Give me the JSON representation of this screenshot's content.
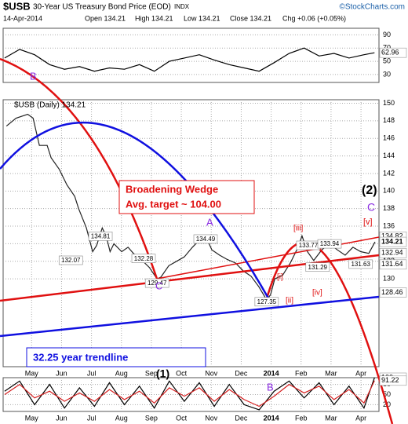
{
  "header": {
    "symbol": "$USB",
    "name": "30-Year US Treasury Bond Price (EOD)",
    "exchange": "INDX",
    "brand": "©StockCharts.com",
    "date": "14-Apr-2014",
    "open": "Open 134.21",
    "high": "High 134.21",
    "low": "Low 134.21",
    "close": "Close 134.21",
    "change": "Chg +0.06 (+0.05%)"
  },
  "chart_data": [
    {
      "type": "line",
      "xlim": [
        -0.95,
        11.6
      ],
      "ylim": [
        18,
        100
      ],
      "yticks": [
        90,
        70,
        50,
        30
      ],
      "x": [
        -0.9,
        -0.4,
        0.1,
        0.6,
        1.1,
        1.6,
        2.1,
        2.6,
        3.1,
        3.6,
        4.1,
        4.6,
        5.1,
        5.6,
        6.1,
        6.6,
        7.1,
        7.6,
        8.1,
        8.6,
        9.1,
        9.6,
        10.1,
        10.6,
        11.1,
        11.45
      ],
      "series": [
        {
          "color": "#000000",
          "values": [
            55,
            68,
            60,
            45,
            38,
            42,
            35,
            40,
            38,
            45,
            35,
            50,
            55,
            60,
            52,
            45,
            40,
            35,
            48,
            62,
            70,
            58,
            62,
            55,
            60,
            62.96
          ]
        }
      ],
      "markers": [
        62.96
      ]
    },
    {
      "type": "line",
      "xlim": [
        -0.95,
        11.6
      ],
      "ylim": [
        120,
        150.4
      ],
      "yticks": [
        150,
        148,
        146,
        144,
        142,
        140,
        138,
        136,
        134,
        132,
        130
      ],
      "xticks": [
        {
          "value": 0,
          "label": "May"
        },
        {
          "value": 1,
          "label": "Jun"
        },
        {
          "value": 2,
          "label": "Jul"
        },
        {
          "value": 3,
          "label": "Aug"
        },
        {
          "value": 4,
          "label": "Sep"
        },
        {
          "value": 5,
          "label": "Oct"
        },
        {
          "value": 6,
          "label": "Nov"
        },
        {
          "value": 7,
          "label": "Dec"
        },
        {
          "value": 8,
          "label": "2014"
        },
        {
          "value": 9,
          "label": "Feb"
        },
        {
          "value": 10,
          "label": "Mar"
        },
        {
          "value": 11,
          "label": "Apr"
        }
      ],
      "x": [
        -0.84,
        -0.52,
        -0.13,
        0.05,
        0.26,
        0.52,
        0.65,
        0.92,
        1.18,
        1.44,
        1.57,
        1.83,
        2.04,
        2.17,
        2.36,
        2.49,
        2.62,
        2.75,
        3.01,
        3.22,
        3.4,
        3.66,
        3.93,
        4.19,
        4.32,
        4.58,
        4.84,
        5.1,
        5.37,
        5.63,
        5.81,
        6.02,
        6.28,
        6.54,
        6.81,
        7.07,
        7.33,
        7.59,
        7.85,
        7.98,
        8.12,
        8.38,
        8.64,
        8.9,
        9.03,
        9.21,
        9.42,
        9.69,
        9.95,
        10.21,
        10.47,
        10.73,
        10.99,
        11.26,
        11.47
      ],
      "series": [
        {
          "name": "$USB (Daily) 134.21",
          "color": "#222222",
          "values": [
            147.4,
            148.3,
            148.75,
            148.3,
            145.2,
            145.2,
            143.8,
            142.5,
            140.7,
            139.4,
            138,
            135.8,
            133.1,
            133.8,
            135.8,
            134.9,
            133.1,
            134,
            133.1,
            133.6,
            132.9,
            132.2,
            131.3,
            130,
            130.2,
            131.5,
            132,
            132.5,
            133.6,
            134.5,
            134.9,
            133.3,
            132.7,
            132.2,
            131.8,
            130.9,
            130.3,
            129.1,
            127.6,
            128.2,
            130,
            130.4,
            131.8,
            133.6,
            134.9,
            133.1,
            132.1,
            133.3,
            134,
            133.3,
            132.7,
            133.6,
            133.1,
            132.9,
            134.21
          ]
        }
      ],
      "point_labels": [
        {
          "x": 2.3,
          "value": 134.81
        },
        {
          "x": 1.31,
          "value": 132.07
        },
        {
          "x": 3.74,
          "value": 132.28
        },
        {
          "x": 4.19,
          "value": 129.47
        },
        {
          "x": 5.81,
          "value": 134.49
        },
        {
          "x": 7.85,
          "value": 127.35
        },
        {
          "x": 9.24,
          "value": 133.77
        },
        {
          "x": 9.55,
          "value": 131.29
        },
        {
          "x": 9.95,
          "value": 133.94
        },
        {
          "x": 10.99,
          "value": 131.63
        }
      ],
      "markers": [
        134.82,
        134.21,
        132.94,
        131.64,
        128.46
      ],
      "annotations": [
        "Broadening Wedge",
        "Avg. target ~ 104.00",
        "32.25 year trendline",
        "B",
        "C",
        "A",
        "(2)",
        "C",
        "[v]",
        "[iii]",
        "[i]",
        "[ii]",
        "[iv]",
        "(1)"
      ]
    },
    {
      "type": "line",
      "xlim": [
        -0.95,
        11.6
      ],
      "ylim": [
        0,
        100
      ],
      "yticks": [
        80,
        50,
        20
      ],
      "xticks": [
        {
          "value": 0,
          "label": "May"
        },
        {
          "value": 1,
          "label": "Jun"
        },
        {
          "value": 2,
          "label": "Jul"
        },
        {
          "value": 3,
          "label": "Aug"
        },
        {
          "value": 4,
          "label": "Sep"
        },
        {
          "value": 5,
          "label": "Oct"
        },
        {
          "value": 6,
          "label": "Nov"
        },
        {
          "value": 7,
          "label": "Dec"
        },
        {
          "value": 8,
          "label": "2014"
        },
        {
          "value": 9,
          "label": "Feb"
        },
        {
          "value": 10,
          "label": "Mar"
        },
        {
          "value": 11,
          "label": "Apr"
        }
      ],
      "x": [
        -0.9,
        -0.4,
        0.1,
        0.6,
        1.1,
        1.6,
        2.1,
        2.6,
        3.1,
        3.6,
        4.1,
        4.6,
        5.1,
        5.6,
        6.1,
        6.6,
        7.1,
        7.6,
        8.1,
        8.6,
        9.1,
        9.6,
        10.1,
        10.6,
        11.1,
        11.45
      ],
      "series": [
        {
          "color": "#000000",
          "values": [
            60,
            90,
            20,
            80,
            10,
            70,
            15,
            85,
            20,
            75,
            10,
            90,
            30,
            85,
            15,
            80,
            20,
            5,
            60,
            90,
            40,
            85,
            20,
            75,
            10,
            100
          ]
        },
        {
          "color": "#d62020",
          "values": [
            50,
            80,
            40,
            60,
            30,
            55,
            30,
            65,
            35,
            60,
            25,
            70,
            45,
            70,
            30,
            65,
            35,
            15,
            45,
            80,
            55,
            75,
            35,
            65,
            25,
            91.22
          ]
        }
      ],
      "markers": [
        100.0,
        91.22
      ],
      "annotations": [
        "B"
      ]
    }
  ]
}
